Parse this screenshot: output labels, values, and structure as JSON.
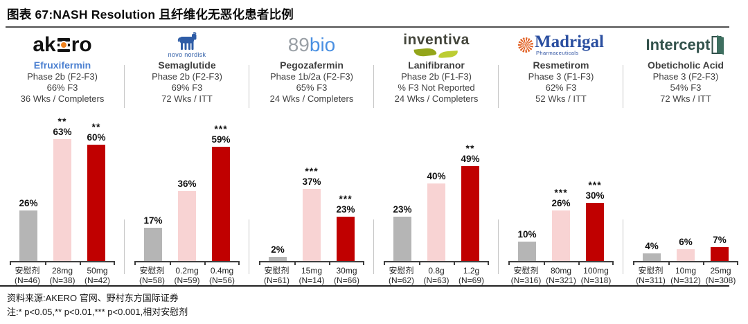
{
  "title": "图表 67:NASH Resolution 且纤维化无恶化患者比例",
  "footer": {
    "source": "资料来源:AKERO 官网、野村东方国际证券",
    "note": "注:* p<0.05,** p<0.01,*** p<0.001,相对安慰剂"
  },
  "colors": {
    "placebo_bar": "#b5b5b5",
    "low_dose_bar": "#f8d3d3",
    "high_dose_bar": "#c00000",
    "highlight_drug": "#4a7fd0",
    "drug_name": "#3f3f3f",
    "axis": "#3f3f3f",
    "separator": "#c6c6c6"
  },
  "chart_data": {
    "type": "bar",
    "unit": "%",
    "ylim": [
      0,
      70
    ],
    "panels": [
      {
        "company": "Akero",
        "logo": {
          "style": "akero",
          "left": "ak",
          "right": "ro"
        },
        "drug": "Efruxifermin",
        "highlight": true,
        "info_lines": [
          "Phase 2b (F2-F3)",
          "66% F3",
          "36 Wks / Completers"
        ],
        "bars": [
          {
            "dose": "安慰剂",
            "n": "(N=46)",
            "value": 26,
            "pct": "26%",
            "sig": "",
            "color": "placebo"
          },
          {
            "dose": "28mg",
            "n": "(N=38)",
            "value": 63,
            "pct": "63%",
            "sig": "**",
            "color": "low_dose"
          },
          {
            "dose": "50mg",
            "n": "(N=42)",
            "value": 60,
            "pct": "60%",
            "sig": "**",
            "color": "high_dose"
          }
        ]
      },
      {
        "company": "Novo Nordisk",
        "logo": {
          "style": "novonordisk",
          "text": "novo nordisk"
        },
        "drug": "Semaglutide",
        "highlight": false,
        "info_lines": [
          "Phase 2b (F2-F3)",
          "69% F3",
          "72 Wks / ITT"
        ],
        "bars": [
          {
            "dose": "安慰剂",
            "n": "(N=58)",
            "value": 17,
            "pct": "17%",
            "sig": "",
            "color": "placebo"
          },
          {
            "dose": "0.2mg",
            "n": "(N=59)",
            "value": 36,
            "pct": "36%",
            "sig": "",
            "color": "low_dose"
          },
          {
            "dose": "0.4mg",
            "n": "(N=56)",
            "value": 59,
            "pct": "59%",
            "sig": "***",
            "color": "high_dose"
          }
        ]
      },
      {
        "company": "89bio",
        "logo": {
          "style": "89bio",
          "gray": "89",
          "blue": "bio"
        },
        "drug": "Pegozafermin",
        "highlight": false,
        "info_lines": [
          "Phase 1b/2a (F2-F3)",
          "65% F3",
          "24 Wks / Completers"
        ],
        "bars": [
          {
            "dose": "安慰剂",
            "n": "(N=61)",
            "value": 2,
            "pct": "2%",
            "sig": "",
            "color": "placebo"
          },
          {
            "dose": "15mg",
            "n": "(N=14)",
            "value": 37,
            "pct": "37%",
            "sig": "***",
            "color": "low_dose"
          },
          {
            "dose": "30mg",
            "n": "(N=66)",
            "value": 23,
            "pct": "23%",
            "sig": "***",
            "color": "high_dose"
          }
        ]
      },
      {
        "company": "Inventiva",
        "logo": {
          "style": "inventiva",
          "text": "inventiva"
        },
        "drug": "Lanifibranor",
        "highlight": false,
        "info_lines": [
          "Phase 2b (F1-F3)",
          "% F3 Not Reported",
          "24 Wks / Completers"
        ],
        "bars": [
          {
            "dose": "安慰剂",
            "n": "(N=62)",
            "value": 23,
            "pct": "23%",
            "sig": "",
            "color": "placebo"
          },
          {
            "dose": "0.8g",
            "n": "(N=63)",
            "value": 40,
            "pct": "40%",
            "sig": "",
            "color": "low_dose"
          },
          {
            "dose": "1.2g",
            "n": "(N=69)",
            "value": 49,
            "pct": "49%",
            "sig": "**",
            "color": "high_dose"
          }
        ]
      },
      {
        "company": "Madrigal",
        "logo": {
          "style": "madrigal",
          "text": "Madrigal",
          "sub": "Pharmaceuticals"
        },
        "drug": "Resmetirom",
        "highlight": false,
        "info_lines": [
          "Phase 3 (F1-F3)",
          "62% F3",
          "52 Wks / ITT"
        ],
        "bars": [
          {
            "dose": "安慰剂",
            "n": "(N=316)",
            "value": 10,
            "pct": "10%",
            "sig": "",
            "color": "placebo"
          },
          {
            "dose": "80mg",
            "n": "(N=321)",
            "value": 26,
            "pct": "26%",
            "sig": "***",
            "color": "low_dose"
          },
          {
            "dose": "100mg",
            "n": "(N=318)",
            "value": 30,
            "pct": "30%",
            "sig": "***",
            "color": "high_dose"
          }
        ]
      },
      {
        "company": "Intercept",
        "logo": {
          "style": "intercept",
          "text": "Intercept"
        },
        "drug": "Obeticholic Acid",
        "highlight": false,
        "info_lines": [
          "Phase 3 (F2-F3)",
          "54% F3",
          "72 Wks / ITT"
        ],
        "bars": [
          {
            "dose": "安慰剂",
            "n": "(N=311)",
            "value": 4,
            "pct": "4%",
            "sig": "",
            "color": "placebo"
          },
          {
            "dose": "10mg",
            "n": "(N=312)",
            "value": 6,
            "pct": "6%",
            "sig": "",
            "color": "low_dose"
          },
          {
            "dose": "25mg",
            "n": "(N=308)",
            "value": 7,
            "pct": "7%",
            "sig": "",
            "color": "high_dose"
          }
        ]
      }
    ]
  }
}
